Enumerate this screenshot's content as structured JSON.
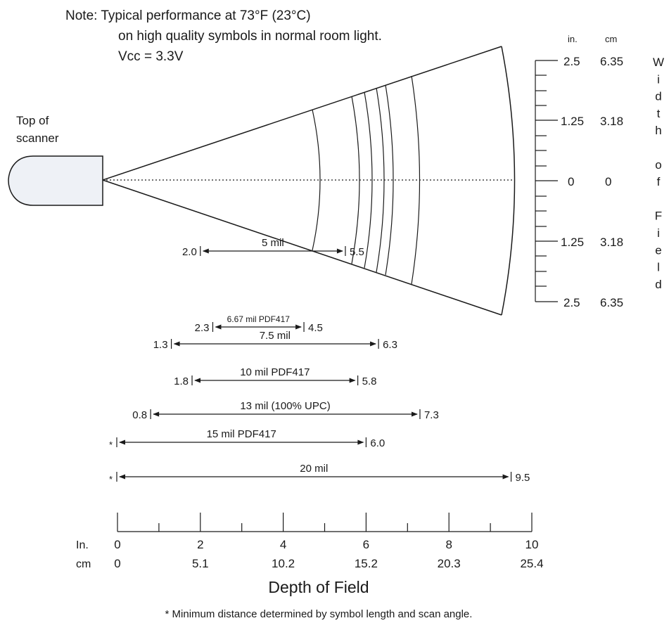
{
  "note": {
    "line1": "Note:  Typical performance at 73°F (23°C)",
    "line2": "on high quality symbols in normal room light.",
    "line3": "Vcc = 3.3V"
  },
  "scanner": {
    "label_line1": "Top of",
    "label_line2": "scanner"
  },
  "width_scale": {
    "unit_in": "in.",
    "unit_cm": "cm",
    "rows": [
      {
        "in": "2.5",
        "cm": "6.35"
      },
      {
        "in": "1.25",
        "cm": "3.18"
      },
      {
        "in": "0",
        "cm": "0"
      },
      {
        "in": "1.25",
        "cm": "3.18"
      },
      {
        "in": "2.5",
        "cm": "6.35"
      }
    ],
    "vertical_label": [
      "W",
      "i",
      "d",
      "t",
      "h",
      "",
      "o",
      "f",
      "",
      "F",
      "i",
      "e",
      "l",
      "d"
    ]
  },
  "ranges": [
    {
      "label": "5 mil",
      "near": "2.0",
      "far": "5.5",
      "near_value": 2.0,
      "far_value": 5.5
    },
    {
      "label": "6.67 mil PDF417",
      "near": "2.3",
      "far": "4.5",
      "near_value": 2.3,
      "far_value": 4.5
    },
    {
      "label": "7.5 mil",
      "near": "1.3",
      "far": "6.3",
      "near_value": 1.3,
      "far_value": 6.3
    },
    {
      "label": "10 mil PDF417",
      "near": "1.8",
      "far": "5.8",
      "near_value": 1.8,
      "far_value": 5.8
    },
    {
      "label": "13 mil (100% UPC)",
      "near": "0.8",
      "far": "7.3",
      "near_value": 0.8,
      "far_value": 7.3
    },
    {
      "label": "15 mil PDF417",
      "near": "*",
      "far": "6.0",
      "near_value": 0,
      "far_value": 6.0
    },
    {
      "label": "20 mil",
      "near": "*",
      "far": "9.5",
      "near_value": 0,
      "far_value": 9.5
    }
  ],
  "depth_axis": {
    "unit_in": "In.",
    "unit_cm": "cm",
    "in_ticks": [
      "0",
      "2",
      "4",
      "6",
      "8",
      "10"
    ],
    "cm_ticks": [
      "0",
      "5.1",
      "10.2",
      "15.2",
      "20.3",
      "25.4"
    ],
    "title": "Depth of Field"
  },
  "footnote": "* Minimum distance determined by symbol length and scan angle.",
  "colors": {
    "line": "#1a1a1a",
    "scanner_fill": "#eef1f6"
  }
}
